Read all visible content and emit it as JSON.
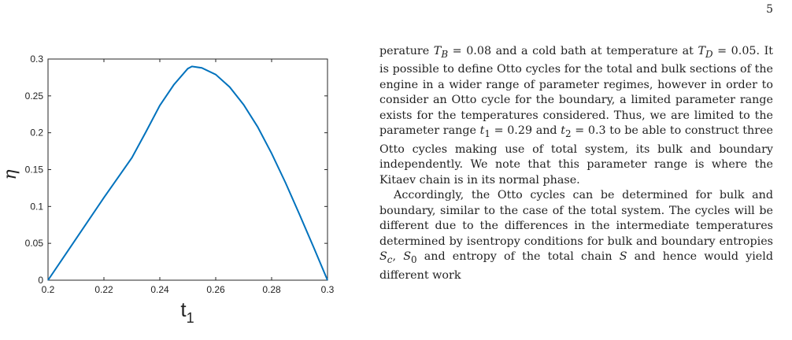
{
  "page_number": "5",
  "figure": {
    "ylabel": "η",
    "xlabel_main": "t",
    "xlabel_sub": "1"
  },
  "chart_data": {
    "type": "line",
    "title": "",
    "xlabel": "t1",
    "ylabel": "η",
    "xlim": [
      0.2,
      0.3
    ],
    "ylim": [
      0,
      0.3
    ],
    "xticks": [
      "0.2",
      "0.22",
      "0.24",
      "0.26",
      "0.28",
      "0.3"
    ],
    "yticks": [
      "0",
      "0.05",
      "0.1",
      "0.15",
      "0.2",
      "0.25",
      "0.3"
    ],
    "line_color": "#0072BD",
    "grid": false,
    "series": [
      {
        "x": [
          0.2,
          0.205,
          0.21,
          0.215,
          0.22,
          0.225,
          0.23,
          0.235,
          0.24,
          0.245,
          0.25,
          0.2515,
          0.255,
          0.26,
          0.265,
          0.27,
          0.275,
          0.28,
          0.285,
          0.29,
          0.295,
          0.3
        ],
        "y": [
          0,
          0.028,
          0.056,
          0.084,
          0.112,
          0.139,
          0.166,
          0.201,
          0.237,
          0.265,
          0.287,
          0.29,
          0.288,
          0.279,
          0.262,
          0.238,
          0.208,
          0.172,
          0.132,
          0.089,
          0.045,
          0
        ]
      }
    ]
  },
  "text": {
    "p1": "perature T_B = 0.08 and a cold bath at temperature at T_D = 0.05. It is possible to define Otto cycles for the total and bulk sections of the engine in a wider range of parameter regimes, however in order to consider an Otto cycle for the boundary, a limited parameter range exists for the temperatures considered. Thus, we are limited to the parameter range t1 = 0.29 and t2 = 0.3 to be able to construct three Otto cycles making use of total system, its bulk and boundary independently. We note that this parameter range is where the Kitaev chain is in its normal phase.",
    "p2": "Accordingly, the Otto cycles can be determined for bulk and boundary, similar to the case of the total system. The cycles will be different due to the differences in the intermediate temperatures determined by isentropy conditions for bulk and boundary entropies S_c, S_0 and entropy of the total chain S and hence would yield different work"
  }
}
